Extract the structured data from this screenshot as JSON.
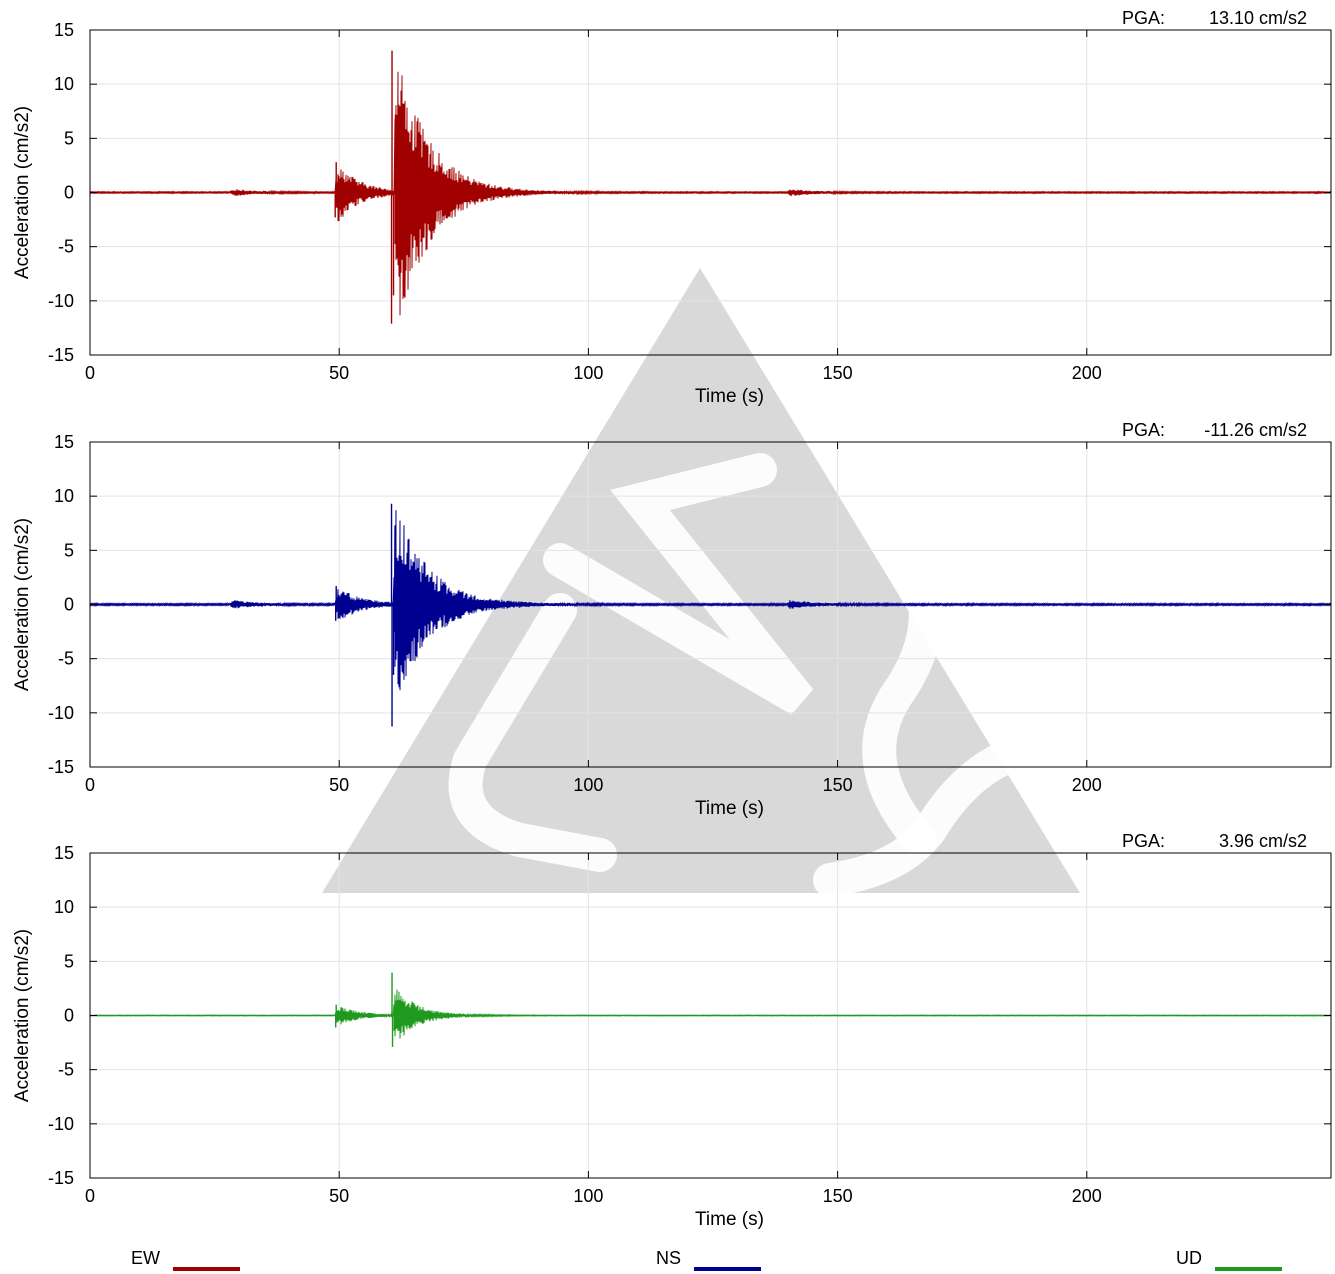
{
  "chart_data": [
    {
      "type": "line",
      "component": "EW",
      "color": "#a00000",
      "pga_label": "PGA:",
      "pga_value": "13.10 cm/s2",
      "xlabel": "Time (s)",
      "ylabel": "Acceleration (cm/s2)",
      "xlim": [
        0,
        249
      ],
      "ylim": [
        -15,
        15
      ],
      "x_ticks": [
        "0",
        "50",
        "100",
        "150",
        "200"
      ],
      "y_ticks": [
        "15",
        "10",
        "5",
        "0",
        "-5",
        "-10",
        "-15"
      ],
      "grid": true,
      "envelope": {
        "events": [
          {
            "t": 28.2,
            "amp": 0.3
          },
          {
            "t": 49.2,
            "amp": 2.7
          },
          {
            "t": 61.0,
            "amp": 13.1
          },
          {
            "t": 140.0,
            "amp": 0.3
          }
        ],
        "noise": 0.06
      },
      "peaks": [
        {
          "t": 60.6,
          "value": 13.1
        },
        {
          "t": 60.5,
          "value": -12.1
        },
        {
          "t": 60.9,
          "value": -9.5
        },
        {
          "t": 61.3,
          "value": 7.2
        },
        {
          "t": 49.4,
          "value": 2.8
        },
        {
          "t": 49.2,
          "value": -2.3
        }
      ]
    },
    {
      "type": "line",
      "component": "NS",
      "color": "#000090",
      "pga_label": "PGA:",
      "pga_value": "-11.26 cm/s2",
      "xlabel": "Time (s)",
      "ylabel": "Acceleration (cm/s2)",
      "xlim": [
        0,
        249
      ],
      "ylim": [
        -15,
        15
      ],
      "x_ticks": [
        "0",
        "50",
        "100",
        "150",
        "200"
      ],
      "y_ticks": [
        "15",
        "10",
        "5",
        "0",
        "-5",
        "-10",
        "-15"
      ],
      "grid": true,
      "envelope": {
        "events": [
          {
            "t": 28.2,
            "amp": 0.35
          },
          {
            "t": 49.2,
            "amp": 1.6
          },
          {
            "t": 60.8,
            "amp": 9.3
          },
          {
            "t": 140.0,
            "amp": 0.4
          }
        ],
        "noise": 0.08
      },
      "peaks": [
        {
          "t": 60.6,
          "value": -11.26
        },
        {
          "t": 60.5,
          "value": 9.3
        },
        {
          "t": 60.9,
          "value": -6.5
        },
        {
          "t": 61.2,
          "value": 7.3
        },
        {
          "t": 49.4,
          "value": 1.7
        },
        {
          "t": 49.3,
          "value": -1.5
        }
      ]
    },
    {
      "type": "line",
      "component": "UD",
      "color": "#1f9a1f",
      "pga_label": "PGA:",
      "pga_value": "3.96 cm/s2",
      "xlabel": "Time (s)",
      "ylabel": "Acceleration (cm/s2)",
      "xlim": [
        0,
        249
      ],
      "ylim": [
        -15,
        15
      ],
      "x_ticks": [
        "0",
        "50",
        "100",
        "150",
        "200"
      ],
      "y_ticks": [
        "15",
        "10",
        "5",
        "0",
        "-5",
        "-10",
        "-15"
      ],
      "grid": true,
      "envelope": {
        "events": [
          {
            "t": 49.2,
            "amp": 0.9
          },
          {
            "t": 60.8,
            "amp": 2.6
          }
        ],
        "noise": 0.03
      },
      "peaks": [
        {
          "t": 60.6,
          "value": 3.96
        },
        {
          "t": 60.7,
          "value": -2.9
        },
        {
          "t": 49.4,
          "value": 1.0
        },
        {
          "t": 49.3,
          "value": -1.1
        }
      ]
    }
  ],
  "legend": [
    {
      "label": "EW",
      "color": "#a00000"
    },
    {
      "label": "NS",
      "color": "#000090"
    },
    {
      "label": "UD",
      "color": "#1f9a1f"
    }
  ],
  "watermark": {
    "text": "CWB",
    "color": "#d2d2d2"
  }
}
